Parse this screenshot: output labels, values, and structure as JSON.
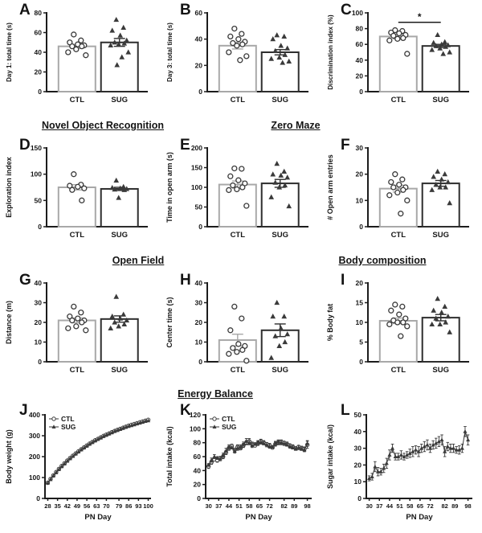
{
  "background": "#ffffff",
  "colors": {
    "axis": "#1c1c1c",
    "point": "#3a3a3a",
    "ctl_bar": "#a8a8a8",
    "sug_bar": "#2e2e2e"
  },
  "groups": [
    "CTL",
    "SUG"
  ],
  "sections": {
    "novel_object_recognition": "Novel Object Recognition",
    "zero_maze": "Zero Maze",
    "open_field": "Open Field",
    "body_composition": "Body composition",
    "energy_balance": "Energy Balance"
  },
  "chart_data": [
    {
      "id": "A",
      "type": "bar_scatter",
      "ylabel": "Day 1: total time (s)",
      "ylim": [
        0,
        80
      ],
      "yticks": [
        0,
        20,
        40,
        60,
        80
      ],
      "series": [
        {
          "name": "CTL",
          "marker": "circle",
          "color": "#a8a8a8",
          "mean": 46,
          "sem": 2,
          "points": [
            58,
            52,
            50,
            48,
            47,
            46,
            46,
            43,
            40,
            37
          ]
        },
        {
          "name": "SUG",
          "marker": "triangle",
          "color": "#2e2e2e",
          "mean": 50,
          "sem": 4,
          "points": [
            73,
            65,
            62,
            57,
            52,
            50,
            49,
            48,
            47,
            40,
            35,
            27
          ]
        }
      ]
    },
    {
      "id": "B",
      "type": "bar_scatter",
      "ylabel": "Day 3: total time (s)",
      "ylim": [
        0,
        60
      ],
      "yticks": [
        0,
        20,
        40,
        60
      ],
      "series": [
        {
          "name": "CTL",
          "marker": "circle",
          "color": "#a8a8a8",
          "mean": 35,
          "sem": 2.5,
          "points": [
            48,
            44,
            42,
            40,
            38,
            37,
            36,
            35,
            30,
            27,
            24
          ]
        },
        {
          "name": "SUG",
          "marker": "triangle",
          "color": "#2e2e2e",
          "mean": 30,
          "sem": 2,
          "points": [
            43,
            42,
            40,
            35,
            33,
            31,
            28,
            26,
            25,
            23,
            22
          ]
        }
      ]
    },
    {
      "id": "C",
      "type": "bar_scatter",
      "ylabel": "Discrimination index (%)",
      "ylim": [
        0,
        100
      ],
      "yticks": [
        0,
        20,
        40,
        60,
        80,
        100
      ],
      "sig": "*",
      "sig_y": 88,
      "series": [
        {
          "name": "CTL",
          "marker": "circle",
          "color": "#a8a8a8",
          "mean": 70,
          "sem": 3,
          "points": [
            78,
            77,
            75,
            74,
            72,
            71,
            68,
            67,
            65,
            48
          ]
        },
        {
          "name": "SUG",
          "marker": "triangle",
          "color": "#2e2e2e",
          "mean": 58,
          "sem": 2,
          "points": [
            72,
            63,
            62,
            60,
            59,
            58,
            57,
            55,
            53,
            50,
            48
          ]
        }
      ]
    },
    {
      "id": "D",
      "type": "bar_scatter",
      "ylabel": "Exploration index",
      "ylim": [
        0,
        150
      ],
      "yticks": [
        0,
        50,
        100,
        150
      ],
      "series": [
        {
          "name": "CTL",
          "marker": "circle",
          "color": "#a8a8a8",
          "mean": 75,
          "sem": 5,
          "points": [
            100,
            80,
            78,
            76,
            73,
            70,
            50
          ]
        },
        {
          "name": "SUG",
          "marker": "triangle",
          "color": "#2e2e2e",
          "mean": 72,
          "sem": 3,
          "points": [
            88,
            76,
            74,
            73,
            72,
            71,
            70,
            55
          ]
        }
      ]
    },
    {
      "id": "E",
      "type": "bar_scatter",
      "ylabel": "Time in open arm (s)",
      "ylim": [
        0,
        200
      ],
      "yticks": [
        0,
        50,
        100,
        150,
        200
      ],
      "series": [
        {
          "name": "CTL",
          "marker": "circle",
          "color": "#a8a8a8",
          "mean": 107,
          "sem": 9,
          "points": [
            148,
            147,
            128,
            118,
            110,
            105,
            100,
            95,
            93,
            53
          ]
        },
        {
          "name": "SUG",
          "marker": "triangle",
          "color": "#2e2e2e",
          "mean": 110,
          "sem": 10,
          "points": [
            160,
            140,
            133,
            130,
            125,
            112,
            105,
            100,
            75,
            52
          ]
        }
      ]
    },
    {
      "id": "F",
      "type": "bar_scatter",
      "ylabel": "# Open arm entries",
      "ylim": [
        0,
        30
      ],
      "yticks": [
        0,
        10,
        20,
        30
      ],
      "series": [
        {
          "name": "CTL",
          "marker": "circle",
          "color": "#a8a8a8",
          "mean": 14.5,
          "sem": 1.3,
          "points": [
            20,
            18,
            17,
            16,
            15,
            15,
            14,
            13,
            12,
            10,
            5
          ]
        },
        {
          "name": "SUG",
          "marker": "triangle",
          "color": "#2e2e2e",
          "mean": 16.5,
          "sem": 1.1,
          "points": [
            21,
            20,
            19,
            18,
            17,
            16,
            15,
            15,
            14,
            9
          ]
        }
      ]
    },
    {
      "id": "G",
      "type": "bar_scatter",
      "ylabel": "Distance (m)",
      "ylim": [
        0,
        40
      ],
      "yticks": [
        0,
        10,
        20,
        30,
        40
      ],
      "series": [
        {
          "name": "CTL",
          "marker": "circle",
          "color": "#a8a8a8",
          "mean": 21,
          "sem": 1.2,
          "points": [
            28,
            25,
            23,
            22,
            21,
            21,
            20,
            18,
            17,
            16
          ]
        },
        {
          "name": "SUG",
          "marker": "triangle",
          "color": "#2e2e2e",
          "mean": 21.7,
          "sem": 1.6,
          "points": [
            33,
            24,
            23,
            22,
            21,
            20,
            19,
            18,
            17
          ]
        }
      ]
    },
    {
      "id": "H",
      "type": "bar_scatter",
      "ylabel": "Center time (s)",
      "ylim": [
        0,
        40
      ],
      "yticks": [
        0,
        10,
        20,
        30,
        40
      ],
      "series": [
        {
          "name": "CTL",
          "marker": "circle",
          "color": "#a8a8a8",
          "mean": 11,
          "sem": 3,
          "points": [
            28,
            22,
            16,
            9,
            8,
            7,
            6,
            5,
            4,
            0.5
          ]
        },
        {
          "name": "SUG",
          "marker": "triangle",
          "color": "#2e2e2e",
          "mean": 16,
          "sem": 3.2,
          "points": [
            30,
            23,
            23,
            17,
            14,
            13,
            10,
            8,
            2
          ]
        }
      ]
    },
    {
      "id": "I",
      "type": "bar_scatter",
      "ylabel": "% Body fat",
      "ylim": [
        0,
        20
      ],
      "yticks": [
        0,
        5,
        10,
        15,
        20
      ],
      "series": [
        {
          "name": "CTL",
          "marker": "circle",
          "color": "#a8a8a8",
          "mean": 10.4,
          "sem": 0.7,
          "points": [
            14.5,
            14,
            13,
            12,
            11,
            10.5,
            10,
            10,
            9.5,
            9,
            6.5
          ]
        },
        {
          "name": "SUG",
          "marker": "triangle",
          "color": "#2e2e2e",
          "mean": 11.2,
          "sem": 0.8,
          "points": [
            16,
            14,
            13,
            12.5,
            11.5,
            11,
            10,
            9.5,
            9.5,
            7.5
          ]
        }
      ]
    },
    {
      "id": "J",
      "type": "line",
      "ylabel": "Body weight (g)",
      "xlabel": "PN Day",
      "ylim": [
        0,
        400
      ],
      "yticks": [
        0,
        100,
        200,
        300,
        400
      ],
      "xlim": [
        26,
        102
      ],
      "xticks": [
        28,
        35,
        42,
        49,
        56,
        63,
        70,
        79,
        86,
        93,
        100
      ],
      "legend": true,
      "x": [
        28,
        30,
        32,
        34,
        36,
        38,
        40,
        42,
        44,
        46,
        48,
        50,
        52,
        54,
        56,
        58,
        60,
        62,
        64,
        66,
        68,
        70,
        72,
        74,
        76,
        78,
        80,
        82,
        84,
        86,
        88,
        90,
        92,
        94,
        96,
        98,
        100
      ],
      "series": [
        {
          "name": "CTL",
          "marker": "circle",
          "values": [
            75,
            93,
            110,
            126,
            141,
            155,
            168,
            181,
            193,
            204,
            215,
            225,
            235,
            244,
            253,
            262,
            270,
            278,
            285,
            292,
            299,
            305,
            311,
            317,
            323,
            328,
            333,
            338,
            343,
            348,
            352,
            356,
            360,
            364,
            368,
            372,
            376
          ]
        },
        {
          "name": "SUG",
          "marker": "triangle",
          "values": [
            74,
            91,
            108,
            124,
            139,
            153,
            166,
            179,
            191,
            202,
            213,
            223,
            233,
            242,
            251,
            260,
            268,
            276,
            283,
            290,
            297,
            303,
            309,
            315,
            321,
            326,
            331,
            336,
            341,
            345,
            349,
            353,
            357,
            361,
            365,
            369,
            372
          ]
        }
      ]
    },
    {
      "id": "K",
      "type": "line",
      "ylabel": "Total intake (kcal)",
      "xlabel": "PN Day",
      "ylim": [
        0,
        120
      ],
      "yticks": [
        0,
        20,
        40,
        60,
        80,
        100,
        120
      ],
      "xlim": [
        28,
        101
      ],
      "xticks": [
        30,
        37,
        44,
        51,
        58,
        65,
        72,
        82,
        89,
        98
      ],
      "legend": true,
      "x": [
        30,
        32,
        34,
        36,
        38,
        40,
        42,
        44,
        46,
        48,
        50,
        52,
        54,
        56,
        58,
        60,
        62,
        64,
        66,
        68,
        70,
        72,
        74,
        76,
        78,
        80,
        82,
        84,
        86,
        88,
        90,
        92,
        94,
        96,
        98
      ],
      "series": [
        {
          "name": "CTL",
          "marker": "circle",
          "values": [
            46,
            52,
            56,
            55,
            58,
            60,
            66,
            72,
            75,
            70,
            74,
            72,
            76,
            80,
            82,
            78,
            76,
            79,
            82,
            80,
            78,
            76,
            73,
            78,
            80,
            81,
            80,
            78,
            76,
            74,
            72,
            74,
            72,
            71,
            77
          ],
          "err": [
            3,
            3,
            2,
            3,
            2,
            3,
            3,
            3,
            3,
            2,
            3,
            2,
            3,
            3,
            4,
            3,
            2,
            3,
            3,
            3,
            2,
            3,
            2,
            3,
            3,
            3,
            2,
            3,
            2,
            3,
            2,
            2,
            3,
            3,
            5
          ]
        },
        {
          "name": "SUG",
          "marker": "triangle",
          "values": [
            48,
            55,
            60,
            58,
            57,
            62,
            68,
            74,
            73,
            68,
            72,
            74,
            78,
            82,
            80,
            76,
            78,
            80,
            81,
            79,
            77,
            75,
            74,
            79,
            81,
            80,
            79,
            77,
            75,
            73,
            71,
            73,
            71,
            70,
            79
          ],
          "err": [
            2,
            3,
            3,
            2,
            3,
            3,
            4,
            3,
            2,
            3,
            3,
            3,
            3,
            4,
            3,
            3,
            2,
            3,
            3,
            2,
            3,
            3,
            2,
            3,
            3,
            3,
            3,
            2,
            3,
            2,
            2,
            3,
            2,
            3,
            4
          ]
        }
      ]
    },
    {
      "id": "L",
      "type": "line",
      "ylabel": "Sugar intake (kcal)",
      "xlabel": "PN Day",
      "ylim": [
        0,
        50
      ],
      "yticks": [
        0,
        10,
        20,
        30,
        40,
        50
      ],
      "xlim": [
        28,
        101
      ],
      "xticks": [
        30,
        37,
        44,
        51,
        58,
        65,
        72,
        82,
        89,
        98
      ],
      "legend": false,
      "x": [
        30,
        32,
        34,
        36,
        38,
        40,
        42,
        44,
        46,
        48,
        50,
        52,
        54,
        56,
        58,
        60,
        62,
        64,
        66,
        68,
        70,
        72,
        74,
        76,
        78,
        80,
        82,
        84,
        86,
        88,
        90,
        92,
        94,
        96,
        98
      ],
      "series": [
        {
          "name": "SUG",
          "marker": "triangle",
          "values": [
            12,
            13,
            19,
            16,
            16,
            18,
            21,
            26,
            30,
            25,
            25,
            26,
            25,
            26,
            27,
            28,
            29,
            28,
            30,
            31,
            32,
            30,
            32,
            33,
            34,
            35,
            28,
            31,
            30,
            30,
            29,
            29,
            30,
            40,
            35
          ],
          "err": [
            1.5,
            2,
            3,
            2.5,
            2,
            2.5,
            3,
            3,
            2.5,
            2,
            2,
            2.5,
            2,
            2,
            2.5,
            3,
            2.5,
            3,
            2.5,
            3,
            3,
            2.5,
            2.5,
            3,
            3,
            3,
            3,
            2.5,
            2.5,
            2.5,
            2,
            2.5,
            2.5,
            3,
            3
          ]
        }
      ]
    }
  ]
}
